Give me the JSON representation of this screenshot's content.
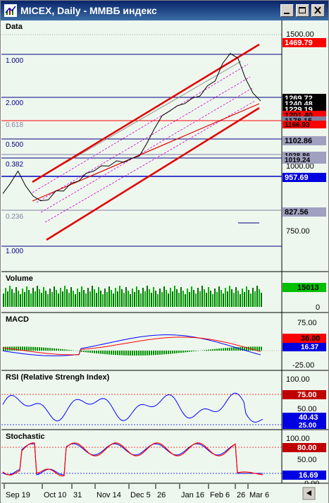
{
  "window": {
    "title": "MICEX, Daily - ММВБ индекс"
  },
  "colors": {
    "panel_bg": "#eef7ee",
    "price_line": "#000000",
    "channel_red": "#e00000",
    "fib_pink": "#d000d0",
    "fib_navy": "#000080",
    "volume_green": "#00a000",
    "macd_blue": "#0000ff",
    "signal_red": "#ff0000",
    "label_red": "#ff0000",
    "label_black": "#000000",
    "label_blue": "#0000ff",
    "label_gray": "#8080a0",
    "label_green": "#00c000"
  },
  "panels": {
    "data": {
      "title": "Data",
      "fib_labels": [
        "1.000",
        "2.000",
        "0.618",
        "0.500",
        "0.382",
        "0.236",
        "1.000"
      ],
      "axis_labels": [
        "1500.00",
        "1000.00",
        "750.00"
      ],
      "value_tags": [
        {
          "text": "1469.79",
          "color": "red"
        },
        {
          "text": "1269.72",
          "color": "black"
        },
        {
          "text": "1240.48",
          "color": "black"
        },
        {
          "text": "1229.19",
          "color": "black"
        },
        {
          "text": "1201.40",
          "color": "red"
        },
        {
          "text": "1178.15",
          "color": "gray"
        },
        {
          "text": "1166.03",
          "color": "red"
        },
        {
          "text": "1102.86",
          "color": "gray"
        },
        {
          "text": "1028.86",
          "color": "gray"
        },
        {
          "text": "1019.24",
          "color": "gray"
        },
        {
          "text": "957.69",
          "color": "blue"
        },
        {
          "text": "827.56",
          "color": "gray"
        }
      ]
    },
    "volume": {
      "title": "Volume",
      "value_tag": "15013",
      "axis_label": "0"
    },
    "macd": {
      "title": "MACD",
      "axis_labels": [
        "75.00",
        "-25.00"
      ],
      "value_tags": [
        {
          "text": "36.00",
          "color": "red"
        },
        {
          "text": "16.37",
          "color": "blue"
        }
      ]
    },
    "rsi": {
      "title": "RSI (Relative Strengh Index)",
      "axis_labels": [
        "100.00",
        "50.00"
      ],
      "value_tags": [
        {
          "text": "75.00",
          "color": "red"
        },
        {
          "text": "40.43",
          "color": "blue"
        },
        {
          "text": "25.00",
          "color": "blue"
        }
      ]
    },
    "stochastic": {
      "title": "Stochastic",
      "axis_labels": [
        "100.00",
        "50.00",
        "0.00"
      ],
      "value_tags": [
        {
          "text": "80.00",
          "color": "red"
        },
        {
          "text": "16.69",
          "color": "blue"
        }
      ]
    }
  },
  "date_axis": [
    "Sep 19",
    "Oct 10",
    "31",
    "Nov 14",
    "Dec 5",
    "26",
    "Jan 16",
    "Feb 6",
    "26",
    "Mar 6"
  ],
  "chart_data": {
    "type": "line",
    "title": "MICEX, Daily - ММВБ индекс",
    "series": [
      {
        "name": "Data",
        "values": [
          870,
          900,
          960,
          890,
          860,
          830,
          845,
          870,
          880,
          900,
          920,
          940,
          960,
          970,
          980,
          990,
          995,
          1000,
          1020,
          1060,
          1130,
          1170,
          1200,
          1210,
          1230,
          1240,
          1260,
          1290,
          1320,
          1380,
          1430,
          1400,
          1330,
          1260,
          1240
        ]
      }
    ]
  }
}
